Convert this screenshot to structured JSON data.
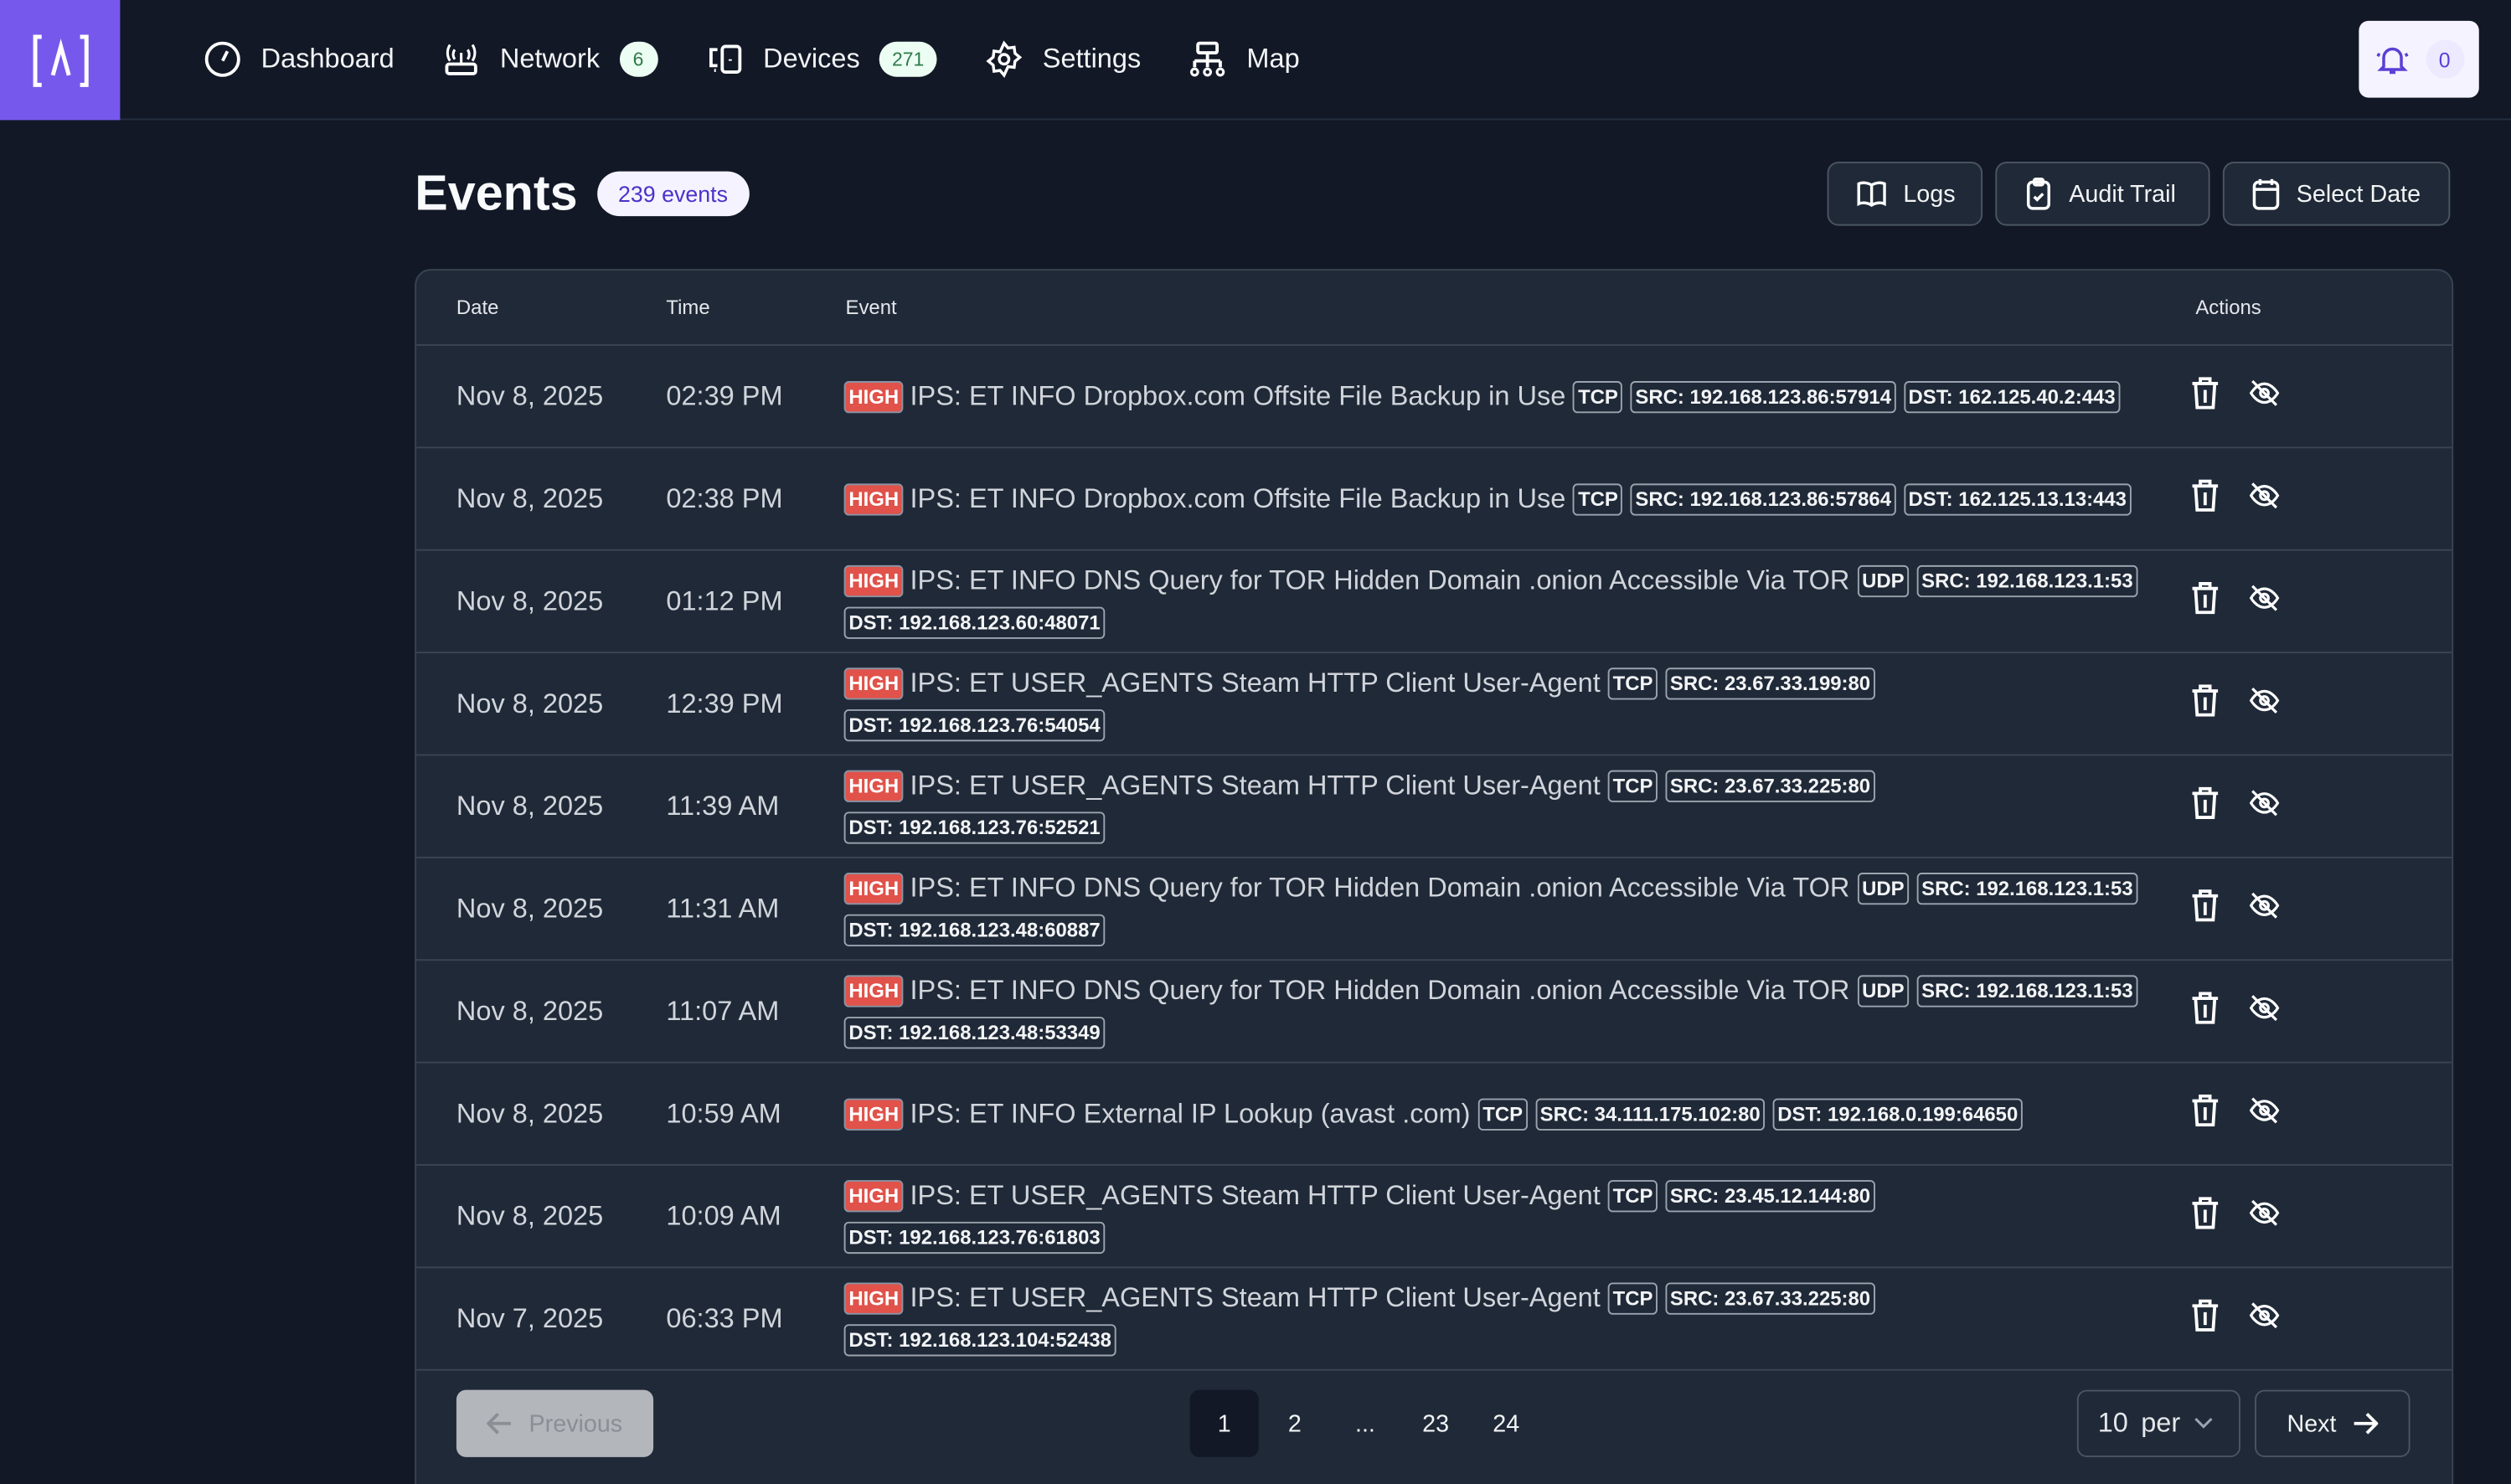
{
  "nav": {
    "items": [
      {
        "label": "Dashboard",
        "icon": "gauge-icon"
      },
      {
        "label": "Network",
        "icon": "router-icon",
        "count": "6"
      },
      {
        "label": "Devices",
        "icon": "devices-icon",
        "count": "271"
      },
      {
        "label": "Settings",
        "icon": "gear-icon"
      },
      {
        "label": "Map",
        "icon": "sitemap-icon"
      }
    ],
    "notifications": "0"
  },
  "page": {
    "title": "Events",
    "count_badge": "239 events",
    "buttons": {
      "logs": "Logs",
      "audit": "Audit Trail",
      "date": "Select Date"
    }
  },
  "table": {
    "headers": {
      "date": "Date",
      "time": "Time",
      "event": "Event",
      "actions": "Actions"
    },
    "rows": [
      {
        "date": "Nov 8, 2025",
        "time": "02:39 PM",
        "severity": "HIGH",
        "text": "IPS: ET INFO Dropbox.com Offsite File Backup in Use",
        "proto": "TCP",
        "src": "SRC: 192.168.123.86:57914",
        "dst": "DST: 162.125.40.2:443"
      },
      {
        "date": "Nov 8, 2025",
        "time": "02:38 PM",
        "severity": "HIGH",
        "text": "IPS: ET INFO Dropbox.com Offsite File Backup in Use",
        "proto": "TCP",
        "src": "SRC: 192.168.123.86:57864",
        "dst": "DST: 162.125.13.13:443"
      },
      {
        "date": "Nov 8, 2025",
        "time": "01:12 PM",
        "severity": "HIGH",
        "text": "IPS: ET INFO DNS Query for TOR Hidden Domain .onion Accessible Via TOR",
        "proto": "UDP",
        "src": "SRC: 192.168.123.1:53",
        "dst": "DST: 192.168.123.60:48071"
      },
      {
        "date": "Nov 8, 2025",
        "time": "12:39 PM",
        "severity": "HIGH",
        "text": "IPS: ET USER_AGENTS Steam HTTP Client User-Agent",
        "proto": "TCP",
        "src": "SRC: 23.67.33.199:80",
        "dst": "DST: 192.168.123.76:54054"
      },
      {
        "date": "Nov 8, 2025",
        "time": "11:39 AM",
        "severity": "HIGH",
        "text": "IPS: ET USER_AGENTS Steam HTTP Client User-Agent",
        "proto": "TCP",
        "src": "SRC: 23.67.33.225:80",
        "dst": "DST: 192.168.123.76:52521"
      },
      {
        "date": "Nov 8, 2025",
        "time": "11:31 AM",
        "severity": "HIGH",
        "text": "IPS: ET INFO DNS Query for TOR Hidden Domain .onion Accessible Via TOR",
        "proto": "UDP",
        "src": "SRC: 192.168.123.1:53",
        "dst": "DST: 192.168.123.48:60887"
      },
      {
        "date": "Nov 8, 2025",
        "time": "11:07 AM",
        "severity": "HIGH",
        "text": "IPS: ET INFO DNS Query for TOR Hidden Domain .onion Accessible Via TOR",
        "proto": "UDP",
        "src": "SRC: 192.168.123.1:53",
        "dst": "DST: 192.168.123.48:53349"
      },
      {
        "date": "Nov 8, 2025",
        "time": "10:59 AM",
        "severity": "HIGH",
        "text": "IPS: ET INFO External IP Lookup (avast .com)",
        "proto": "TCP",
        "src": "SRC: 34.111.175.102:80",
        "dst": "DST: 192.168.0.199:64650"
      },
      {
        "date": "Nov 8, 2025",
        "time": "10:09 AM",
        "severity": "HIGH",
        "text": "IPS: ET USER_AGENTS Steam HTTP Client User-Agent",
        "proto": "TCP",
        "src": "SRC: 23.45.12.144:80",
        "dst": "DST: 192.168.123.76:61803"
      },
      {
        "date": "Nov 7, 2025",
        "time": "06:33 PM",
        "severity": "HIGH",
        "text": "IPS: ET USER_AGENTS Steam HTTP Client User-Agent",
        "proto": "TCP",
        "src": "SRC: 23.67.33.225:80",
        "dst": "DST: 192.168.123.104:52438"
      }
    ]
  },
  "pagination": {
    "previous": "Previous",
    "pages": [
      "1",
      "2",
      "...",
      "23",
      "24"
    ],
    "current": "1",
    "per_page": "10",
    "per_label": "per",
    "next": "Next"
  },
  "colors": {
    "brand": "#7758ec",
    "severity_high": "#e0524a",
    "background": "#121826",
    "panel": "#1f2937"
  }
}
